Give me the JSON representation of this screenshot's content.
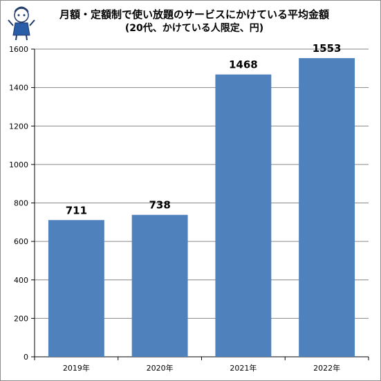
{
  "chart_data": {
    "type": "bar",
    "title": "月額・定額制で使い放題のサービスにかけている平均金額",
    "subtitle": "(20代、かけている人限定、円)",
    "categories": [
      "2019年",
      "2020年",
      "2021年",
      "2022年"
    ],
    "values": [
      711,
      738,
      1468,
      1553
    ],
    "data_labels": [
      "711",
      "738",
      "1468",
      "1553"
    ],
    "ylim": [
      0,
      1600
    ],
    "yticks": [
      0,
      200,
      400,
      600,
      800,
      1000,
      1200,
      1400,
      1600
    ],
    "grid": true,
    "bar_color": "#4F81BD",
    "grid_color": "#868686"
  }
}
